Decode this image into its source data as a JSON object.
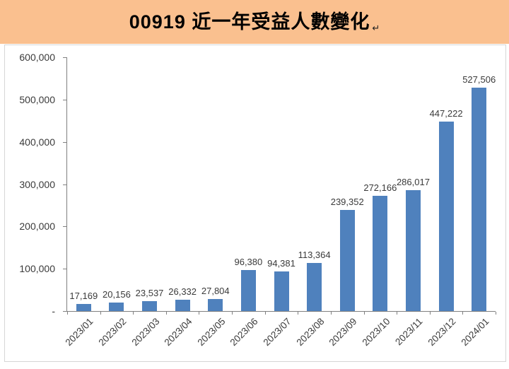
{
  "header": {
    "title": "00919 近一年受益人數變化",
    "return_mark": "↵"
  },
  "colors": {
    "header_bg": "#FAC08F",
    "bar": "#4F81BD",
    "axis": "#808080",
    "frame_border": "#D6D6D6",
    "label_text": "#3A3A3A",
    "title_text": "#000000"
  },
  "chart_data": {
    "type": "bar",
    "title": "00919 近一年受益人數變化",
    "xlabel": "",
    "ylabel": "",
    "categories": [
      "2023/01",
      "2023/02",
      "2023/03",
      "2023/04",
      "2023/05",
      "2023/06",
      "2023/07",
      "2023/08",
      "2023/09",
      "2023/10",
      "2023/11",
      "2023/12",
      "2024/01"
    ],
    "values": [
      17169,
      20156,
      23537,
      26332,
      27804,
      96380,
      94381,
      113364,
      239352,
      272166,
      286017,
      447222,
      527506
    ],
    "value_labels": [
      "17,169",
      "20,156",
      "23,537",
      "26,332",
      "27,804",
      "96,380",
      "94,381",
      "113,364",
      "239,352",
      "272,166",
      "286,017",
      "447,222",
      "527,506"
    ],
    "ylim": [
      0,
      600000
    ],
    "y_tick_labels": [
      "600,000",
      "500,000",
      "400,000",
      "300,000",
      "200,000",
      "100,000",
      "-"
    ],
    "grid": false,
    "legend": false,
    "bar_color": "#4F81BD",
    "x_label_rotation_deg": -45
  }
}
